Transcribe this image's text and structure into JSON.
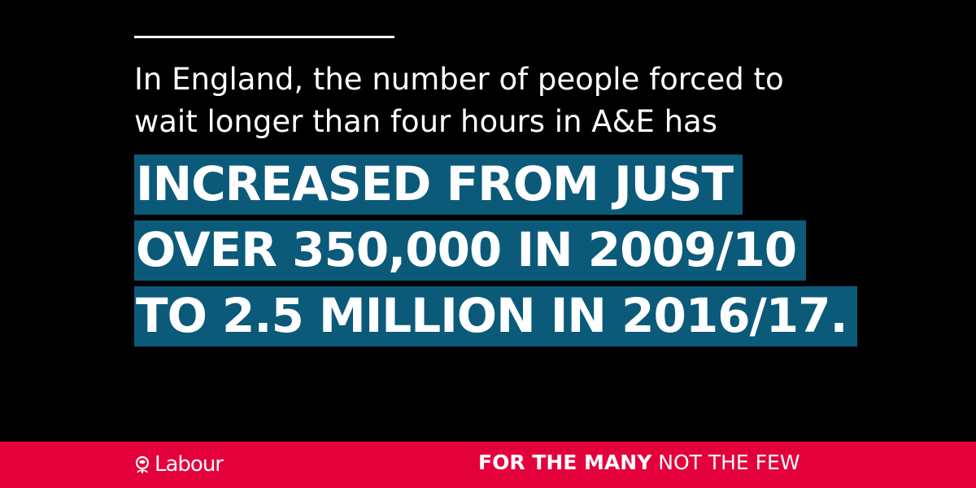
{
  "post": {
    "intro_line_1": "In England, the number of people forced to",
    "intro_line_2": "wait longer than four hours in A&E has",
    "headline_lines": [
      "INCREASED FROM JUST",
      "OVER 350,000 IN 2009/10",
      "TO 2.5 MILLION IN 2016/17."
    ]
  },
  "footer": {
    "logo_text": "Labour",
    "logo_icon": "rose-icon",
    "slogan_strong": "FOR THE MANY",
    "slogan_light": "NOT THE FEW"
  },
  "colors": {
    "background": "#000000",
    "highlight": "#0b5a7a",
    "brand_red": "#e4003b",
    "text": "#ffffff"
  }
}
